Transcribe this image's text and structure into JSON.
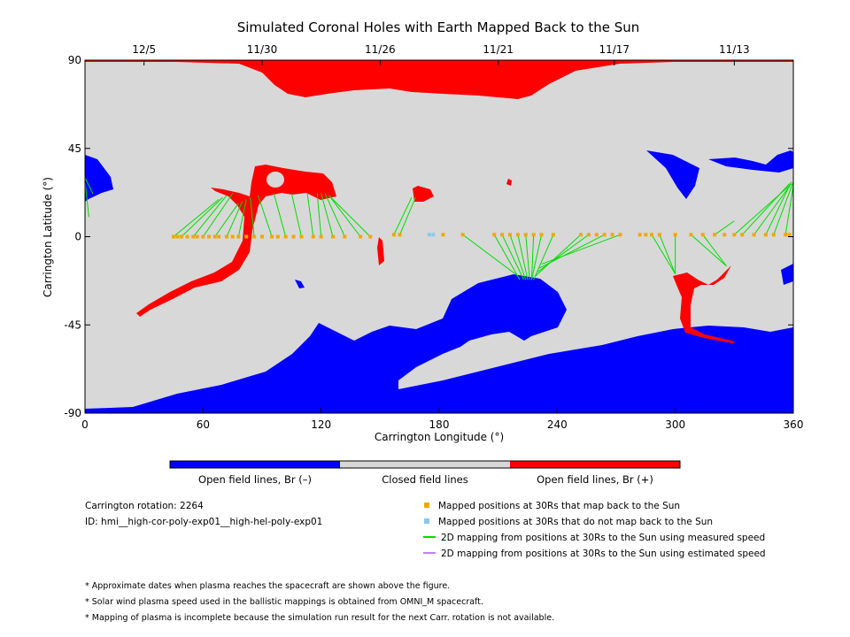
{
  "title": "Simulated Coronal Holes with Earth Mapped Back to the Sun",
  "x_axis": {
    "label": "Carrington Longitude (°)",
    "ticks": [
      "0",
      "60",
      "120",
      "180",
      "240",
      "300",
      "360"
    ],
    "range": [
      0,
      360
    ]
  },
  "y_axis": {
    "label": "Carrington Latitude (°)",
    "ticks": [
      "90",
      "45",
      "0",
      "-45",
      "-90"
    ],
    "range": [
      -90,
      90
    ]
  },
  "top_axis": {
    "dates": [
      "12/5",
      "11/30",
      "11/26",
      "11/21",
      "11/17",
      "11/13"
    ],
    "date_longitudes": [
      30,
      90,
      150,
      210,
      269,
      330
    ]
  },
  "colorbar": {
    "labels": [
      "Open field lines, Br (–)",
      "Closed field lines",
      "Open field lines, Br (+)"
    ],
    "colors": [
      "#0000ff",
      "#d8d8d8",
      "#ff0000"
    ]
  },
  "info": {
    "carrington_rotation": "Carrington rotation: 2264",
    "run_id": "ID: hmi__high-cor-poly-exp01__high-hel-poly-exp01"
  },
  "legend": [
    {
      "label": "Mapped positions at 30Rs that map back to the Sun",
      "color": "#f0a800",
      "kind": "square"
    },
    {
      "label": "Mapped positions at 30Rs that do not map back to the Sun",
      "color": "#88c8f0",
      "kind": "square"
    },
    {
      "label": "2D mapping from positions at 30Rs to the Sun using measured speed",
      "color": "#00dd00",
      "kind": "line"
    },
    {
      "label": "2D mapping from positions at 30Rs to the Sun using estimated speed",
      "color": "#c080f0",
      "kind": "line"
    }
  ],
  "notes": [
    "* Approximate dates when plasma reaches the spacecraft are shown above the figure.",
    "* Solar wind plasma speed used in the ballistic mappings is obtained from OMNI_M spacecraft.",
    "* Mapping of plasma is incomplete because the simulation run result for the next Carr. rotation is not available."
  ],
  "chart_data": {
    "type": "map",
    "mapped_points_lon": [
      45,
      47,
      49,
      52,
      55,
      57,
      60,
      63,
      66,
      68,
      72,
      75,
      78,
      82,
      86,
      90,
      95,
      98,
      102,
      106,
      110,
      116,
      120,
      126,
      132,
      140,
      145,
      157,
      160,
      182,
      192,
      208,
      212,
      216,
      220,
      224,
      228,
      232,
      238,
      252,
      256,
      260,
      264,
      268,
      272,
      282,
      285,
      288,
      292,
      300,
      308,
      314,
      320,
      325,
      330,
      334,
      340,
      346,
      350,
      356,
      358
    ],
    "mapped_points_lat": [
      0,
      0,
      0,
      0,
      0,
      0,
      0,
      0,
      0,
      0,
      0,
      0,
      0,
      0,
      0,
      0,
      0,
      0,
      0,
      0,
      0,
      0,
      0,
      0,
      0,
      0,
      0,
      1,
      1,
      1,
      1,
      1,
      1,
      1,
      1,
      1,
      1,
      1,
      1,
      1,
      1,
      1,
      1,
      1,
      1,
      1,
      1,
      1,
      1,
      1,
      1,
      1,
      1,
      1,
      1,
      1,
      1,
      1,
      1,
      1,
      1
    ],
    "unmapped_points_lon": [
      175,
      177
    ],
    "unmapped_points_lat": [
      1,
      1
    ],
    "measured_speed_lines": [
      {
        "from": [
          45,
          0
        ],
        "to": [
          68,
          19
        ]
      },
      {
        "from": [
          49,
          0
        ],
        "to": [
          70,
          20
        ]
      },
      {
        "from": [
          55,
          0
        ],
        "to": [
          72,
          21
        ]
      },
      {
        "from": [
          60,
          0
        ],
        "to": [
          75,
          22
        ]
      },
      {
        "from": [
          66,
          0
        ],
        "to": [
          78,
          17
        ]
      },
      {
        "from": [
          72,
          0
        ],
        "to": [
          80,
          18
        ]
      },
      {
        "from": [
          78,
          0
        ],
        "to": [
          82,
          19
        ]
      },
      {
        "from": [
          86,
          0
        ],
        "to": [
          84,
          20
        ]
      },
      {
        "from": [
          95,
          0
        ],
        "to": [
          88,
          21
        ]
      },
      {
        "from": [
          102,
          0
        ],
        "to": [
          96,
          22
        ]
      },
      {
        "from": [
          110,
          0
        ],
        "to": [
          105,
          22
        ]
      },
      {
        "from": [
          116,
          0
        ],
        "to": [
          113,
          22
        ]
      },
      {
        "from": [
          120,
          0
        ],
        "to": [
          118,
          22
        ]
      },
      {
        "from": [
          126,
          0
        ],
        "to": [
          120,
          22
        ]
      },
      {
        "from": [
          132,
          0
        ],
        "to": [
          122,
          22
        ]
      },
      {
        "from": [
          140,
          0
        ],
        "to": [
          124,
          21
        ]
      },
      {
        "from": [
          145,
          0
        ],
        "to": [
          124,
          21
        ]
      },
      {
        "from": [
          157,
          1
        ],
        "to": [
          166,
          20
        ]
      },
      {
        "from": [
          160,
          1
        ],
        "to": [
          168,
          20
        ]
      },
      {
        "from": [
          208,
          1
        ],
        "to": [
          221,
          -22
        ]
      },
      {
        "from": [
          212,
          1
        ],
        "to": [
          223,
          -22
        ]
      },
      {
        "from": [
          216,
          1
        ],
        "to": [
          224,
          -22
        ]
      },
      {
        "from": [
          220,
          1
        ],
        "to": [
          225,
          -22
        ]
      },
      {
        "from": [
          224,
          1
        ],
        "to": [
          226,
          -22
        ]
      },
      {
        "from": [
          228,
          1
        ],
        "to": [
          227,
          -22
        ]
      },
      {
        "from": [
          232,
          1
        ],
        "to": [
          227,
          -22
        ]
      },
      {
        "from": [
          238,
          1
        ],
        "to": [
          228,
          -22
        ]
      },
      {
        "from": [
          192,
          1
        ],
        "to": [
          220,
          -20
        ]
      },
      {
        "from": [
          252,
          1
        ],
        "to": [
          229,
          -20
        ]
      },
      {
        "from": [
          256,
          1
        ],
        "to": [
          230,
          -18
        ]
      },
      {
        "from": [
          264,
          1
        ],
        "to": [
          231,
          -16
        ]
      },
      {
        "from": [
          272,
          1
        ],
        "to": [
          232,
          -14
        ]
      },
      {
        "from": [
          288,
          1
        ],
        "to": [
          300,
          -19
        ]
      },
      {
        "from": [
          292,
          1
        ],
        "to": [
          300,
          -19
        ]
      },
      {
        "from": [
          300,
          1
        ],
        "to": [
          300,
          -19
        ]
      },
      {
        "from": [
          308,
          1
        ],
        "to": [
          326,
          -15
        ]
      },
      {
        "from": [
          314,
          1
        ],
        "to": [
          326,
          -15
        ]
      },
      {
        "from": [
          320,
          1
        ],
        "to": [
          330,
          8
        ]
      },
      {
        "from": [
          330,
          1
        ],
        "to": [
          358,
          26
        ]
      },
      {
        "from": [
          334,
          1
        ],
        "to": [
          358,
          27
        ]
      },
      {
        "from": [
          340,
          1
        ],
        "to": [
          359,
          27
        ]
      },
      {
        "from": [
          346,
          1
        ],
        "to": [
          359,
          28
        ]
      },
      {
        "from": [
          350,
          1
        ],
        "to": [
          360,
          28
        ]
      },
      {
        "from": [
          356,
          1
        ],
        "to": [
          360,
          26
        ]
      },
      {
        "from": [
          0,
          28
        ],
        "to": [
          2,
          10
        ]
      },
      {
        "from": [
          0,
          30
        ],
        "to": [
          4,
          22
        ]
      }
    ]
  }
}
